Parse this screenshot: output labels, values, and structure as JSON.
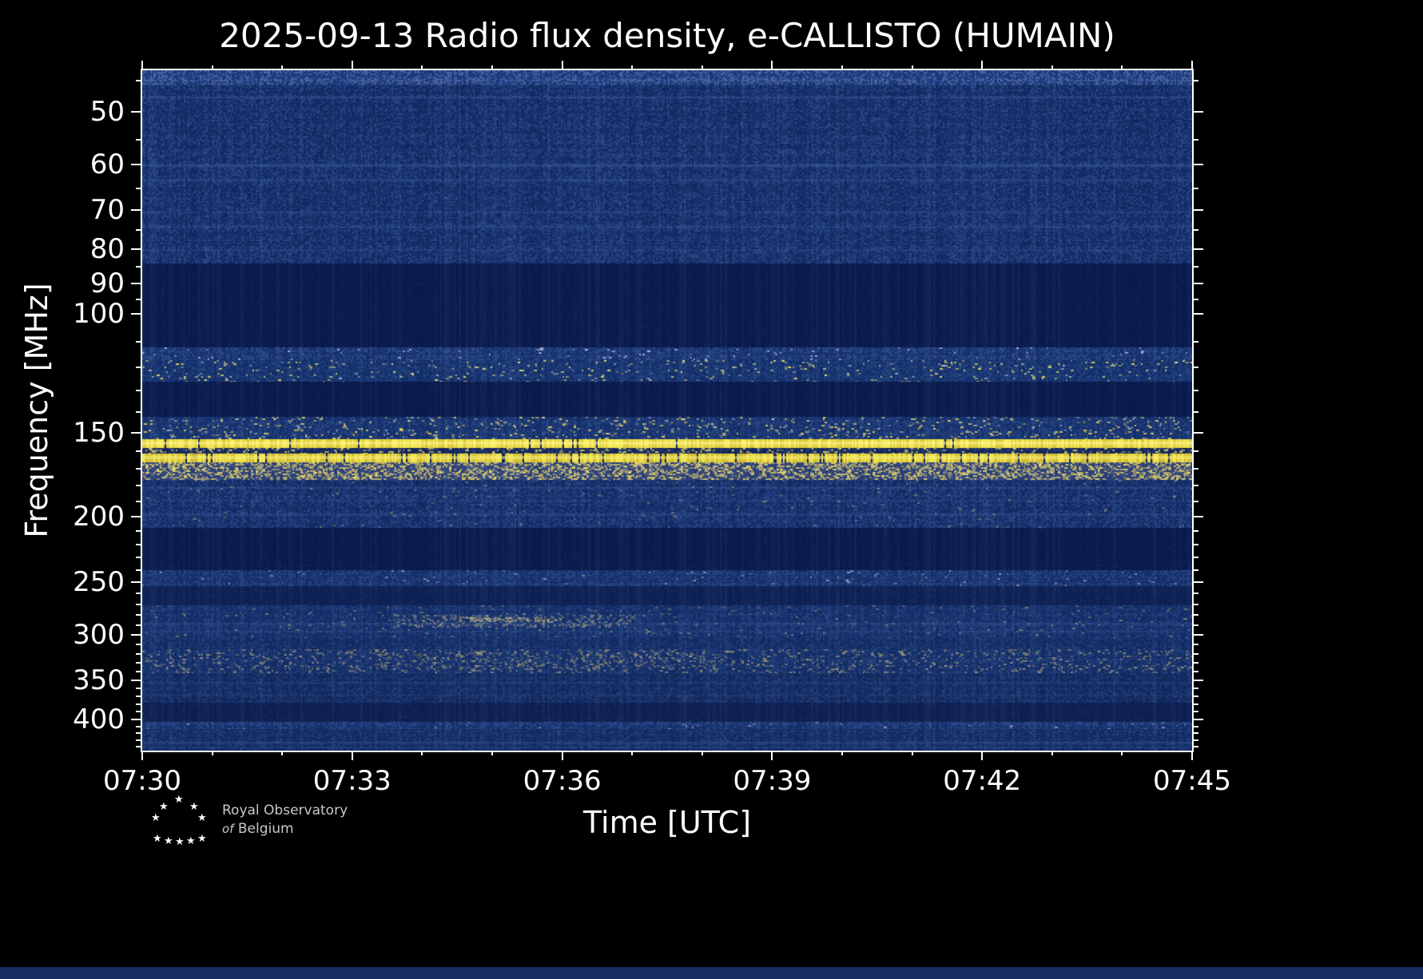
{
  "chart_data": {
    "type": "heatmap",
    "title": "2025-09-13 Radio flux density, e-CALLISTO (HUMAIN)",
    "xlabel": "Time [UTC]",
    "ylabel": "Frequency [MHz]",
    "date": "2025-09-13",
    "instrument": "e-CALLISTO",
    "station": "HUMAIN",
    "x_ticks": [
      "07:30",
      "07:33",
      "07:36",
      "07:39",
      "07:42",
      "07:45"
    ],
    "x_minor_minutes": [
      1,
      2,
      4,
      5,
      7,
      8,
      10,
      11,
      13,
      14
    ],
    "x_total_minutes": 15,
    "y_scale": "log",
    "y_range": [
      43.4,
      445.6
    ],
    "y_ticks": [
      50,
      60,
      70,
      80,
      90,
      100,
      150,
      200,
      250,
      300,
      350,
      400
    ],
    "y_minor_ticks": [
      45,
      55,
      65,
      75,
      85,
      95,
      110,
      120,
      130,
      140,
      160,
      170,
      180,
      190,
      210,
      220,
      230,
      240,
      260,
      270,
      280,
      290,
      310,
      320,
      330,
      340,
      360,
      370,
      380,
      390,
      410,
      420,
      430,
      440
    ],
    "grid": false,
    "legend": "none",
    "colormap": "dark-blue background with yellow interference lines",
    "palette": {
      "background": "#000000",
      "plot_dark": "#0b1c4e",
      "plot_base": "#142e6a",
      "noise_light": "#4465a8",
      "bright_yellow": "#f6eb4d",
      "tan": "#d8c47e",
      "axis": "#ffffff"
    },
    "bright_lines_mhz": [
      155,
      163
    ],
    "bands": [
      {
        "f0": 43.4,
        "f1": 45.6,
        "kind": "noise",
        "base": "#1b3a7e",
        "light": "#7d93c9",
        "density": 0.55,
        "alpha": 0.55
      },
      {
        "f0": 45.6,
        "f1": 84,
        "kind": "noise",
        "base": "#142e6a",
        "light": "#4465a8",
        "density": 0.42,
        "alpha": 0.5,
        "darkDensity": 0.22,
        "hlines": [
          {
            "f": 47.5,
            "a": 0.16
          },
          {
            "f": 60,
            "a": 0.24
          },
          {
            "f": 63,
            "a": 0.13
          },
          {
            "f": 70.5,
            "a": 0.1
          },
          {
            "f": 74,
            "a": 0.14
          },
          {
            "f": 80,
            "a": 0.1
          }
        ]
      },
      {
        "f0": 84,
        "f1": 112,
        "kind": "noise",
        "base": "#0b1c4e",
        "light": "#1e3568",
        "density": 0.08,
        "alpha": 0.4
      },
      {
        "f0": 112,
        "f1": 117,
        "kind": "noise",
        "base": "#16316f",
        "light": "#4a6cae",
        "density": 0.5,
        "alpha": 0.5,
        "speckles": [
          {
            "color": "#cdd5ea",
            "density": 0.015,
            "alpha": 0.8
          }
        ]
      },
      {
        "f0": 117,
        "f1": 126,
        "kind": "noise",
        "base": "#13306c",
        "light": "#41639f",
        "density": 0.42,
        "alpha": 0.45,
        "speckles": [
          {
            "color": "#f3e468",
            "density": 0.02,
            "alpha": 0.95
          },
          {
            "color": "#e9e3b2",
            "density": 0.02,
            "alpha": 0.7
          }
        ]
      },
      {
        "f0": 126,
        "f1": 142,
        "kind": "noise",
        "base": "#0b1c4e",
        "light": "#1e3568",
        "density": 0.07,
        "alpha": 0.4
      },
      {
        "f0": 142,
        "f1": 153.5,
        "kind": "noise",
        "base": "#15316e",
        "light": "#46679f",
        "density": 0.45,
        "alpha": 0.5,
        "speckles": [
          {
            "color": "#eeda69",
            "density": 0.045,
            "alpha": 0.9
          },
          {
            "color": "#cdd5ea",
            "density": 0.02,
            "alpha": 0.6
          }
        ]
      },
      {
        "f0": 153.5,
        "f1": 158,
        "kind": "line",
        "base": "#f7ed52",
        "varColor": "#e3cf3a",
        "notch": "#0b1c4e",
        "notch_p": 0.025,
        "core": "#fff8a0"
      },
      {
        "f0": 158,
        "f1": 161,
        "kind": "noise",
        "base": "#14265c",
        "light": "#5b6da0",
        "density": 0.3,
        "alpha": 0.4,
        "speckles": [
          {
            "color": "#f3e468",
            "density": 0.12,
            "alpha": 0.85
          }
        ]
      },
      {
        "f0": 161,
        "f1": 166,
        "kind": "line",
        "base": "#f2e549",
        "varColor": "#d9c338",
        "notch": "#0d2054",
        "notch_p": 0.06,
        "core": "#fbf27e"
      },
      {
        "f0": 166,
        "f1": 176.5,
        "kind": "noise",
        "base": "#2a3f77",
        "light": "#56689c",
        "density": 0.5,
        "alpha": 0.5,
        "speckles": [
          {
            "color": "#e3cf72",
            "density": 0.3,
            "alpha": 0.85
          },
          {
            "color": "#f3e468",
            "density": 0.08,
            "alpha": 0.95
          }
        ]
      },
      {
        "f0": 176.5,
        "f1": 208,
        "kind": "noise",
        "base": "#142e6a",
        "light": "#4465a8",
        "density": 0.4,
        "alpha": 0.48,
        "darkDensity": 0.18,
        "hlines": [
          {
            "f": 181,
            "a": 0.14
          },
          {
            "f": 189,
            "a": 0.11
          },
          {
            "f": 198,
            "a": 0.11
          }
        ],
        "speckles": [
          {
            "color": "#d8c47e",
            "density": 0.008,
            "alpha": 0.5
          }
        ]
      },
      {
        "f0": 208,
        "f1": 240,
        "kind": "noise",
        "base": "#0b1c4e",
        "light": "#20386c",
        "density": 0.07,
        "alpha": 0.4,
        "hlines": [
          {
            "f": 236,
            "a": 0.08
          }
        ]
      },
      {
        "f0": 240,
        "f1": 254,
        "kind": "noise",
        "base": "#15306d",
        "light": "#45669f",
        "density": 0.45,
        "alpha": 0.5,
        "speckles": [
          {
            "color": "#cdd5ea",
            "density": 0.012,
            "alpha": 0.6
          }
        ]
      },
      {
        "f0": 254,
        "f1": 271,
        "kind": "noise",
        "base": "#0e2257",
        "light": "#27406f",
        "density": 0.15,
        "alpha": 0.4
      },
      {
        "f0": 271,
        "f1": 303,
        "kind": "noise",
        "base": "#142e6a",
        "light": "#42639f",
        "density": 0.4,
        "alpha": 0.45,
        "hlines": [
          {
            "f": 288,
            "a": 0.13
          },
          {
            "f": 296,
            "a": 0.09
          }
        ],
        "speckles": [
          {
            "color": "#d8c47e",
            "density": 0.02,
            "alpha": 0.5
          }
        ]
      },
      {
        "f0": 303,
        "f1": 315,
        "kind": "noise",
        "base": "#132c66",
        "light": "#3f5f9b",
        "density": 0.35,
        "alpha": 0.45
      },
      {
        "f0": 315,
        "f1": 342,
        "kind": "noise",
        "base": "#142e6a",
        "light": "#42639f",
        "density": 0.4,
        "alpha": 0.45,
        "speckles": [
          {
            "color": "#d8c47e",
            "density": 0.07,
            "alpha": 0.6
          },
          {
            "color": "#cdb96a",
            "density": 0.03,
            "alpha": 0.5
          }
        ]
      },
      {
        "f0": 342,
        "f1": 378,
        "kind": "noise",
        "base": "#122a62",
        "light": "#3d5d98",
        "density": 0.35,
        "alpha": 0.45,
        "hlines": [
          {
            "f": 352,
            "a": 0.11
          },
          {
            "f": 368,
            "a": 0.09
          }
        ]
      },
      {
        "f0": 378,
        "f1": 404,
        "kind": "noise",
        "base": "#0e2152",
        "light": "#26406e",
        "density": 0.12,
        "alpha": 0.4
      },
      {
        "f0": 404,
        "f1": 414,
        "kind": "noise",
        "base": "#16316f",
        "light": "#4a6cae",
        "density": 0.5,
        "alpha": 0.5,
        "speckles": [
          {
            "color": "#cdd5ea",
            "density": 0.01,
            "alpha": 0.6
          }
        ]
      },
      {
        "f0": 414,
        "f1": 445.6,
        "kind": "noise",
        "base": "#132c66",
        "light": "#3f5f9b",
        "density": 0.38,
        "alpha": 0.45,
        "hlines": [
          {
            "f": 432,
            "a": 0.18
          },
          {
            "f": 440,
            "a": 0.1
          }
        ]
      }
    ],
    "events": [
      {
        "f0": 280,
        "f1": 292,
        "x0": 0.24,
        "x1": 0.47,
        "color": "#d9c989",
        "density": 0.22,
        "alpha": 0.5
      },
      {
        "f0": 282,
        "f1": 287,
        "x0": 0.3,
        "x1": 0.4,
        "color": "#e6d688",
        "density": 0.4,
        "alpha": 0.6
      },
      {
        "f0": 318,
        "f1": 338,
        "x0": 0.22,
        "x1": 0.55,
        "color": "#cdb96a",
        "density": 0.12,
        "alpha": 0.4
      }
    ]
  },
  "branding": {
    "line1": "Royal Observatory",
    "line2_italic": "of",
    "line2_rest": " Belgium",
    "star_glyph": "★"
  }
}
